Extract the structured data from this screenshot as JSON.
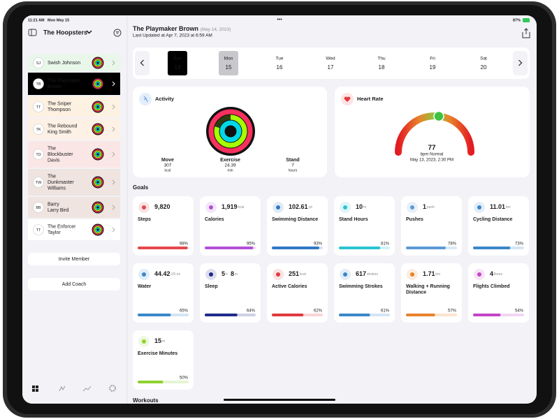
{
  "status_bar": {
    "time": "11:21 AM",
    "date": "Mon May 15",
    "battery": "87%"
  },
  "sidebar": {
    "team": "The Hoopsters",
    "members": [
      {
        "initials": "SJ",
        "name": [
          "Swish Johnson"
        ],
        "color": "#e9f7ea"
      },
      {
        "initials": "TB",
        "name": [
          "The Playmaker",
          "Brown"
        ],
        "color": "#000000",
        "selected": true
      },
      {
        "initials": "TT",
        "name": [
          "The Sniper",
          "Thompson"
        ],
        "color": "#fdf1e2"
      },
      {
        "initials": "TK",
        "name": [
          "The Rebound",
          "King Smith"
        ],
        "color": "#fdf1e6"
      },
      {
        "initials": "TD",
        "name": [
          "The",
          "Blockbuster",
          "Davis"
        ],
        "color": "#fbe6e6"
      },
      {
        "initials": "TW",
        "name": [
          "The",
          "Dunkmaster",
          "Williams"
        ],
        "color": "#efe4df"
      },
      {
        "initials": "BB",
        "name": [
          "Barry",
          "Larry Bird"
        ],
        "color": "#efe4df"
      },
      {
        "initials": "TT",
        "name": [
          "The Enforcer",
          "Taylor"
        ],
        "color": "#ffffff"
      }
    ],
    "buttons": [
      "Invite Member",
      "Add Coach"
    ]
  },
  "header": {
    "name": "The Playmaker Brown",
    "date": "(May 14, 2023)",
    "updated": "Last Updated at Apr 7, 2023 at 6:59 AM"
  },
  "days": [
    {
      "day": "Sun",
      "date": 14,
      "highlight": "dark"
    },
    {
      "day": "Mon",
      "date": 15,
      "highlight": "light"
    },
    {
      "day": "Tue",
      "date": 16
    },
    {
      "day": "Wed",
      "date": 17
    },
    {
      "day": "Thu",
      "date": 18
    },
    {
      "day": "Fri",
      "date": 19
    },
    {
      "day": "Sat",
      "date": 20
    }
  ],
  "activity": {
    "title": "Activity",
    "metrics": [
      {
        "name": "Move",
        "value": 307,
        "unit": "kcal",
        "color": "#e5383b"
      },
      {
        "name": "Exercise",
        "value": 24.39,
        "unit": "min",
        "color": "#5ccc2f"
      },
      {
        "name": "Stand",
        "value": 7,
        "unit": "hours",
        "color": "#38bdd6"
      }
    ]
  },
  "heart_rate": {
    "title": "Heart Rate",
    "value": 77,
    "status": "bpm Normal",
    "timestamp": "May 13, 2023, 2:30 PM"
  },
  "goals_title": "Goals",
  "goals": [
    {
      "name": [
        "Steps"
      ],
      "reading": [
        {
          "value": "9,820"
        }
      ],
      "progress": 98,
      "progress_label": "98%",
      "color": "#e5484d"
    },
    {
      "name": [
        "Calories"
      ],
      "reading": [
        {
          "value": "1,919",
          "unit": "kcal"
        }
      ],
      "progress": 95,
      "progress_label": "95%",
      "color": "#b44fd6"
    },
    {
      "name": [
        "Swimming Distance"
      ],
      "reading": [
        {
          "value": "102.61",
          "unit": "yd"
        }
      ],
      "progress": 93,
      "progress_label": "93%",
      "color": "#2f78c4"
    },
    {
      "name": [
        "Stand Hours"
      ],
      "reading": [
        {
          "value": "10",
          "unit": "hr"
        }
      ],
      "progress": 81,
      "progress_label": "81%",
      "color": "#2bc4d1"
    },
    {
      "name": [
        "Pushes"
      ],
      "reading": [
        {
          "value": "1",
          "unit": "push"
        }
      ],
      "progress": 78,
      "progress_label": "78%",
      "color": "#5b9bd5"
    },
    {
      "name": [
        "Cycling Distance"
      ],
      "reading": [
        {
          "value": "11.01",
          "unit": "km"
        }
      ],
      "progress": 73,
      "progress_label": "73%",
      "color": "#3a87c9"
    },
    {
      "name": [
        "Water"
      ],
      "reading": [
        {
          "value": "44.42",
          "unit": "US oz"
        }
      ],
      "progress": 65,
      "progress_label": "65%",
      "color": "#3a87c9"
    },
    {
      "name": [
        "Sleep"
      ],
      "reading": [
        {
          "value": "5",
          "unit": "h"
        },
        {
          "value": "8",
          "unit": "m"
        }
      ],
      "progress": 64,
      "progress_label": "64%",
      "color": "#1f2a8a"
    },
    {
      "name": [
        "Active Calories"
      ],
      "reading": [
        {
          "value": "251",
          "unit": "kcal"
        }
      ],
      "progress": 62,
      "progress_label": "62%",
      "color": "#e03a3e"
    },
    {
      "name": [
        "Swimming Strokes"
      ],
      "reading": [
        {
          "value": "617",
          "unit": "strokes"
        }
      ],
      "progress": 61,
      "progress_label": "61%",
      "color": "#3a87c9"
    },
    {
      "name": [
        "Walking + Running",
        "Distance"
      ],
      "reading": [
        {
          "value": "1.71",
          "unit": "km"
        }
      ],
      "progress": 57,
      "progress_label": "57%",
      "color": "#e8812a"
    },
    {
      "name": [
        "Flights Climbed"
      ],
      "reading": [
        {
          "value": "4",
          "unit": "floors"
        }
      ],
      "progress": 54,
      "progress_label": "54%",
      "color": "#c445c8"
    },
    {
      "name": [
        "Exercise Minutes"
      ],
      "reading": [
        {
          "value": "15",
          "unit": "m"
        }
      ],
      "progress": 50,
      "progress_label": "50%",
      "color": "#8fd130"
    }
  ],
  "workouts_title": "Workouts"
}
